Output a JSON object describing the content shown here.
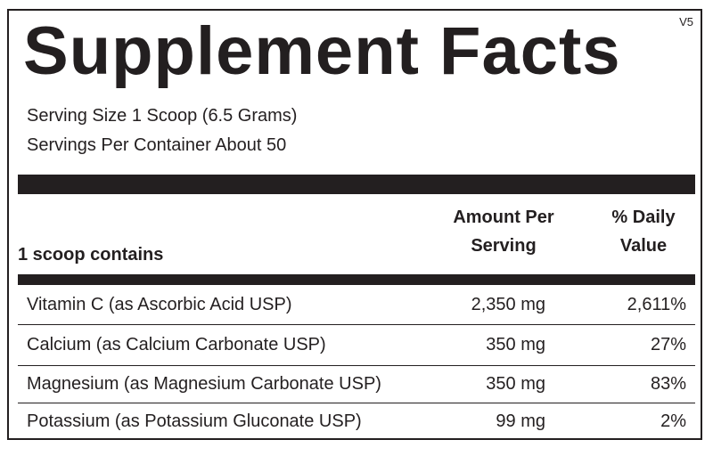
{
  "label": {
    "version": "V5",
    "title": "Supplement Facts",
    "serving_size": "Serving Size 1 Scoop (6.5 Grams)",
    "servings_per_container": "Servings Per Container About 50",
    "table": {
      "header": {
        "name": "1 scoop contains",
        "amount": [
          "Amount Per",
          "Serving"
        ],
        "daily_value": [
          "% Daily",
          "Value"
        ]
      },
      "rows": [
        [
          "Vitamin C (as Ascorbic Acid USP)",
          "2,350 mg",
          "2,611%"
        ],
        [
          "Calcium (as Calcium Carbonate USP)",
          "350 mg",
          "27%"
        ],
        [
          "Magnesium (as Magnesium Carbonate USP)",
          "350 mg",
          "83%"
        ],
        [
          "Potassium (as Potassium Gluconate USP)",
          "99 mg",
          "2%"
        ]
      ]
    }
  }
}
